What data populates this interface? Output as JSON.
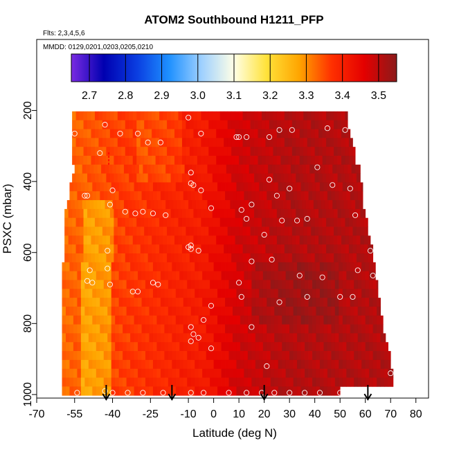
{
  "chart_data": {
    "type": "heatmap",
    "title": "ATOM2 Southbound H1211_PFP",
    "flights_note": "Flts: 2,3,4,5,6",
    "dates_note": "MMDD: 0129,0201,0203,0205,0210",
    "xlabel": "Latitude (deg N)",
    "ylabel": "PSXC (mbar)",
    "xlim": [
      -70,
      85
    ],
    "ylim": [
      1010,
      0
    ],
    "x_ticks": [
      "-70",
      "-55",
      "-40",
      "-25",
      "-10",
      "0",
      "10",
      "20",
      "30",
      "40",
      "50",
      "60",
      "70",
      "80"
    ],
    "x_tick_values": [
      -70,
      -55,
      -40,
      -25,
      -10,
      0,
      10,
      20,
      30,
      40,
      50,
      60,
      70,
      80
    ],
    "y_ticks": [
      "200",
      "400",
      "600",
      "800",
      "1000"
    ],
    "y_tick_values": [
      200,
      400,
      600,
      800,
      1000
    ],
    "colorbar": {
      "min": 2.65,
      "max": 3.55,
      "tick_labels": [
        "2.7",
        "2.8",
        "2.9",
        "3.0",
        "3.1",
        "3.2",
        "3.3",
        "3.4",
        "3.5"
      ],
      "tick_values": [
        2.7,
        2.8,
        2.9,
        3.0,
        3.1,
        3.2,
        3.3,
        3.4,
        3.5
      ],
      "colors": [
        "#7a2be2",
        "#0000b0",
        "#0a3ce0",
        "#1e90ff",
        "#9ed0ff",
        "#ffffe6",
        "#ffe23a",
        "#ffa500",
        "#ff3000",
        "#e40000",
        "#8b1a1a"
      ]
    },
    "field": {
      "pressure_levels": [
        215,
        240,
        265,
        290,
        315,
        340,
        365,
        390,
        415,
        440,
        465,
        490,
        515,
        540,
        565,
        590,
        615,
        640,
        665,
        690,
        715,
        740,
        765,
        790,
        815,
        840,
        865,
        890,
        915,
        940,
        965,
        990
      ],
      "lat_min": [
        -56,
        -56,
        -56,
        -56,
        -56,
        -56,
        -55,
        -56,
        -57,
        -57,
        -58,
        -59,
        -59,
        -59,
        -59,
        -59,
        -59,
        -60,
        -60,
        -60,
        -60,
        -60,
        -60,
        -60,
        -60,
        -60,
        -60,
        -60,
        -60,
        -60,
        -60,
        -60
      ],
      "lat_max": [
        53,
        53,
        54,
        55,
        56,
        56,
        58,
        58,
        59,
        59,
        59,
        60,
        61,
        61,
        62,
        63,
        63,
        64,
        64,
        65,
        65,
        66,
        66,
        67,
        67,
        68,
        69,
        70,
        70,
        71,
        71,
        50
      ],
      "notes": "Mixing ratio field (ppt) varies with latitude: ~3.3 in southern high latitudes rising to ~3.5 north of the equator."
    },
    "samples": [
      [
        -55,
        265
      ],
      [
        -43,
        240
      ],
      [
        -37,
        265
      ],
      [
        -30,
        265
      ],
      [
        -26,
        290
      ],
      [
        -21,
        290
      ],
      [
        -10,
        220
      ],
      [
        -5,
        265
      ],
      [
        9,
        275
      ],
      [
        10,
        275
      ],
      [
        13,
        275
      ],
      [
        22,
        275
      ],
      [
        26,
        255
      ],
      [
        31,
        255
      ],
      [
        45,
        250
      ],
      [
        52,
        255
      ],
      [
        59,
        275
      ],
      [
        -45,
        320
      ],
      [
        -40,
        425
      ],
      [
        -41,
        465
      ],
      [
        -51,
        440
      ],
      [
        -50,
        440
      ],
      [
        -35,
        485
      ],
      [
        -31,
        490
      ],
      [
        -28,
        485
      ],
      [
        -24,
        490
      ],
      [
        -19,
        495
      ],
      [
        -9,
        375
      ],
      [
        -9,
        405
      ],
      [
        -8,
        410
      ],
      [
        -5,
        425
      ],
      [
        -1,
        475
      ],
      [
        11,
        480
      ],
      [
        15,
        465
      ],
      [
        13,
        505
      ],
      [
        20,
        550
      ],
      [
        25,
        440
      ],
      [
        22,
        395
      ],
      [
        30,
        420
      ],
      [
        27,
        510
      ],
      [
        33,
        510
      ],
      [
        37,
        505
      ],
      [
        41,
        360
      ],
      [
        47,
        410
      ],
      [
        54,
        420
      ],
      [
        56,
        495
      ],
      [
        -64,
        640
      ],
      [
        -49,
        650
      ],
      [
        -48,
        685
      ],
      [
        -50,
        680
      ],
      [
        -42,
        645
      ],
      [
        -42,
        595
      ],
      [
        -41,
        690
      ],
      [
        -32,
        710
      ],
      [
        -30,
        710
      ],
      [
        -24,
        685
      ],
      [
        -22,
        690
      ],
      [
        -10,
        585
      ],
      [
        -9,
        590
      ],
      [
        -9,
        580
      ],
      [
        -6,
        595
      ],
      [
        -1,
        750
      ],
      [
        10,
        685
      ],
      [
        11,
        725
      ],
      [
        15,
        625
      ],
      [
        23,
        620
      ],
      [
        26,
        740
      ],
      [
        34,
        665
      ],
      [
        37,
        725
      ],
      [
        43,
        670
      ],
      [
        50,
        725
      ],
      [
        55,
        725
      ],
      [
        57,
        650
      ],
      [
        62,
        595
      ],
      [
        63,
        665
      ],
      [
        -9,
        810
      ],
      [
        -8,
        830
      ],
      [
        -6,
        840
      ],
      [
        -9,
        850
      ],
      [
        -4,
        790
      ],
      [
        -1,
        870
      ],
      [
        15,
        810
      ],
      [
        21,
        920
      ],
      [
        70,
        940
      ],
      [
        -64,
        990
      ],
      [
        -54,
        995
      ],
      [
        -43,
        990
      ],
      [
        -40,
        995
      ],
      [
        -34,
        995
      ],
      [
        -28,
        995
      ],
      [
        -20,
        995
      ],
      [
        -9,
        995
      ],
      [
        -4,
        995
      ],
      [
        6,
        995
      ],
      [
        13,
        995
      ],
      [
        19,
        995
      ],
      [
        24,
        995
      ],
      [
        30,
        995
      ],
      [
        36,
        995
      ],
      [
        42,
        995
      ],
      [
        50,
        995
      ]
    ],
    "marker_arrows_lat": [
      -42.5,
      -16.5,
      20,
      61
    ],
    "marker_tick_lat": -41.5
  }
}
